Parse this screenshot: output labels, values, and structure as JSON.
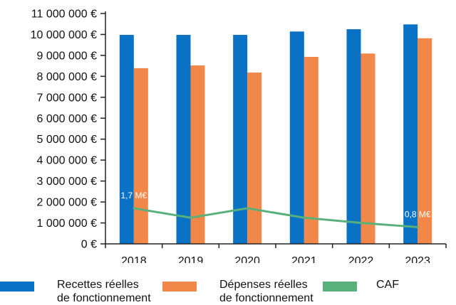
{
  "chart_data": {
    "type": "bar",
    "categories": [
      "2018",
      "2019",
      "2020",
      "2021",
      "2022",
      "2023"
    ],
    "ylim": [
      0,
      11000000
    ],
    "yticks": [
      0,
      1000000,
      2000000,
      3000000,
      4000000,
      5000000,
      6000000,
      7000000,
      8000000,
      9000000,
      10000000,
      11000000
    ],
    "ytick_labels": [
      "0 €",
      "1 000 000 €",
      "2 000 000 €",
      "3 000 000 €",
      "4 000 000 €",
      "5 000 000 €",
      "6 000 000 €",
      "7 000 000 €",
      "8 000 000 €",
      "9 000 000 €",
      "10 000 000 €",
      "11 000 000 €"
    ],
    "series": [
      {
        "name": "Recettes réelles\nde fonctionnement",
        "kind": "bar",
        "color": "#0a72c4",
        "values": [
          9980000,
          9980000,
          9980000,
          10140000,
          10250000,
          10480000
        ]
      },
      {
        "name": "Dépenses réelles\nde fonctionnement",
        "kind": "bar",
        "color": "#f2874a",
        "values": [
          8390000,
          8520000,
          8180000,
          8930000,
          9090000,
          9820000
        ]
      },
      {
        "name": "CAF",
        "kind": "line",
        "color": "#5ab07a",
        "values": [
          1700000,
          1250000,
          1700000,
          1250000,
          1000000,
          800000
        ]
      }
    ],
    "annotations": [
      {
        "category": "2018",
        "text": "1,7 M€"
      },
      {
        "category": "2023",
        "text": "0,8 M€"
      }
    ],
    "legend_position": "bottom",
    "grid": false
  }
}
